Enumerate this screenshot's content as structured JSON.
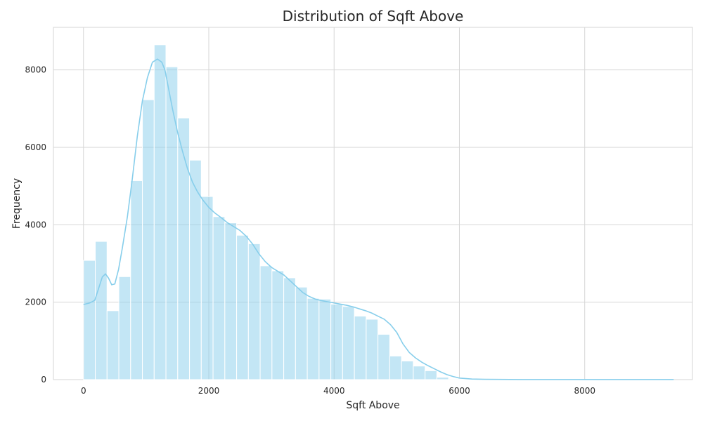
{
  "chart_data": {
    "type": "bar",
    "title": "Distribution of Sqft Above",
    "xlabel": "Sqft Above",
    "ylabel": "Frequency",
    "xlim": [
      -480,
      9720
    ],
    "ylim": [
      0,
      9100
    ],
    "xticks": [
      0,
      2000,
      4000,
      6000,
      8000
    ],
    "yticks": [
      0,
      2000,
      4000,
      6000,
      8000
    ],
    "grid": true,
    "bar_color": "#87ceeb",
    "bar_opacity": 0.5,
    "kde_color": "#87ceeb",
    "bin_width": 188,
    "bin_starts": [
      0,
      188,
      376,
      564,
      752,
      940,
      1128,
      1316,
      1504,
      1692,
      1880,
      2068,
      2256,
      2444,
      2632,
      2820,
      3008,
      3196,
      3384,
      3572,
      3760,
      3948,
      4136,
      4324,
      4512,
      4700,
      4888,
      5076,
      5264,
      5452,
      5640,
      5828,
      6016,
      6204,
      6392,
      6580,
      6768,
      6956,
      7144,
      7332,
      7520,
      7708,
      7896,
      8084,
      8272,
      8460,
      8648,
      8836,
      9024,
      9212
    ],
    "values": [
      3080,
      3570,
      1780,
      2660,
      5140,
      7230,
      8650,
      8080,
      6760,
      5670,
      4730,
      4210,
      4050,
      3730,
      3510,
      2940,
      2810,
      2630,
      2390,
      2100,
      2080,
      1950,
      1890,
      1640,
      1560,
      1170,
      610,
      480,
      350,
      230,
      60,
      20,
      10,
      8,
      5,
      4,
      3,
      2,
      2,
      1,
      1,
      1,
      1,
      0,
      0,
      1,
      0,
      0,
      0,
      1
    ],
    "kde": {
      "x": [
        0,
        100,
        180,
        250,
        300,
        350,
        400,
        450,
        500,
        560,
        620,
        700,
        780,
        860,
        940,
        1020,
        1100,
        1180,
        1250,
        1300,
        1360,
        1420,
        1500,
        1580,
        1660,
        1740,
        1820,
        1900,
        2000,
        2100,
        2200,
        2300,
        2400,
        2500,
        2600,
        2700,
        2800,
        2900,
        3000,
        3100,
        3200,
        3300,
        3400,
        3500,
        3600,
        3700,
        3800,
        3900,
        4000,
        4100,
        4200,
        4300,
        4400,
        4500,
        4600,
        4700,
        4800,
        4900,
        5000,
        5100,
        5200,
        5300,
        5400,
        5500,
        5600,
        5700,
        5800,
        5900,
        6000,
        6200,
        6400,
        6600,
        6800,
        7000,
        7500,
        8000,
        8500,
        9000,
        9420
      ],
      "y": [
        1940,
        1980,
        2050,
        2400,
        2650,
        2730,
        2620,
        2450,
        2470,
        2850,
        3400,
        4200,
        5200,
        6300,
        7200,
        7800,
        8200,
        8280,
        8200,
        8000,
        7500,
        7000,
        6400,
        5900,
        5450,
        5100,
        4850,
        4650,
        4450,
        4300,
        4180,
        4050,
        3950,
        3850,
        3700,
        3500,
        3250,
        3050,
        2900,
        2800,
        2700,
        2550,
        2400,
        2250,
        2150,
        2080,
        2040,
        2010,
        1980,
        1950,
        1920,
        1880,
        1830,
        1780,
        1720,
        1640,
        1560,
        1420,
        1220,
        920,
        700,
        560,
        450,
        360,
        280,
        200,
        130,
        80,
        40,
        15,
        8,
        5,
        3,
        2,
        1,
        1,
        1,
        1,
        1
      ]
    }
  }
}
